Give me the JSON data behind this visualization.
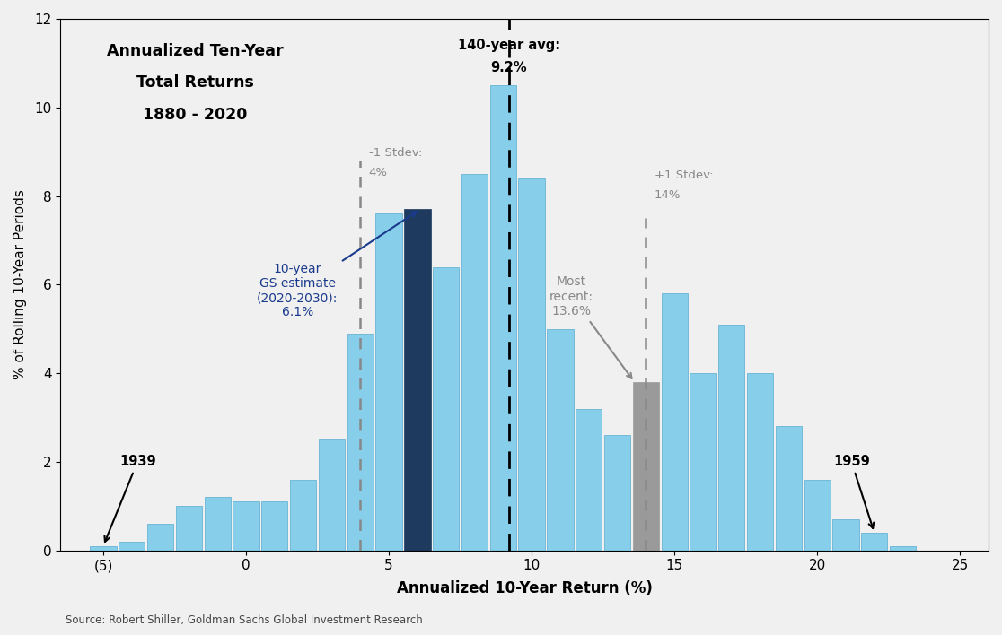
{
  "bar_centers": [
    -5,
    -4,
    -3,
    -2,
    -1,
    0,
    1,
    2,
    3,
    4,
    5,
    6,
    7,
    8,
    9,
    10,
    11,
    12,
    13,
    14,
    15,
    16,
    17,
    18,
    19,
    20,
    21,
    22,
    23
  ],
  "bar_heights": [
    0.1,
    0.2,
    0.6,
    1.0,
    1.2,
    1.1,
    1.1,
    1.6,
    2.5,
    4.9,
    7.6,
    7.7,
    6.4,
    8.5,
    10.5,
    8.4,
    5.0,
    3.2,
    2.6,
    3.8,
    5.8,
    4.0,
    5.1,
    4.0,
    2.8,
    1.6,
    0.7,
    0.4,
    0.1
  ],
  "bar_color_light": "#87CEEB",
  "bar_color_dark": "#1e3a5f",
  "bar_color_gray": "#9a9a9a",
  "special_dark_index": 11,
  "special_gray_index": 19,
  "avg_line_x": 9.2,
  "neg1stdev_line_x": 4.0,
  "pos1stdev_line_x": 14.0,
  "xlim": [
    -6.5,
    26
  ],
  "ylim": [
    0,
    12
  ],
  "xticks": [
    -5,
    0,
    5,
    10,
    15,
    20,
    25
  ],
  "xticklabels": [
    "(5)",
    "0",
    "5",
    "10",
    "15",
    "20",
    "25"
  ],
  "yticks": [
    0,
    2,
    4,
    6,
    8,
    10,
    12
  ],
  "xlabel": "Annualized 10-Year Return (%)",
  "ylabel": "% of Rolling 10-Year Periods",
  "title_line1": "Annualized Ten-Year",
  "title_line2": "Total Returns",
  "title_line3": "1880 - 2020",
  "source_text": "Source: Robert Shiller, Goldman Sachs Global Investment Research",
  "bar_width": 0.92,
  "fig_bg": "#f0f0f0",
  "plot_bg": "#f0f0f0"
}
